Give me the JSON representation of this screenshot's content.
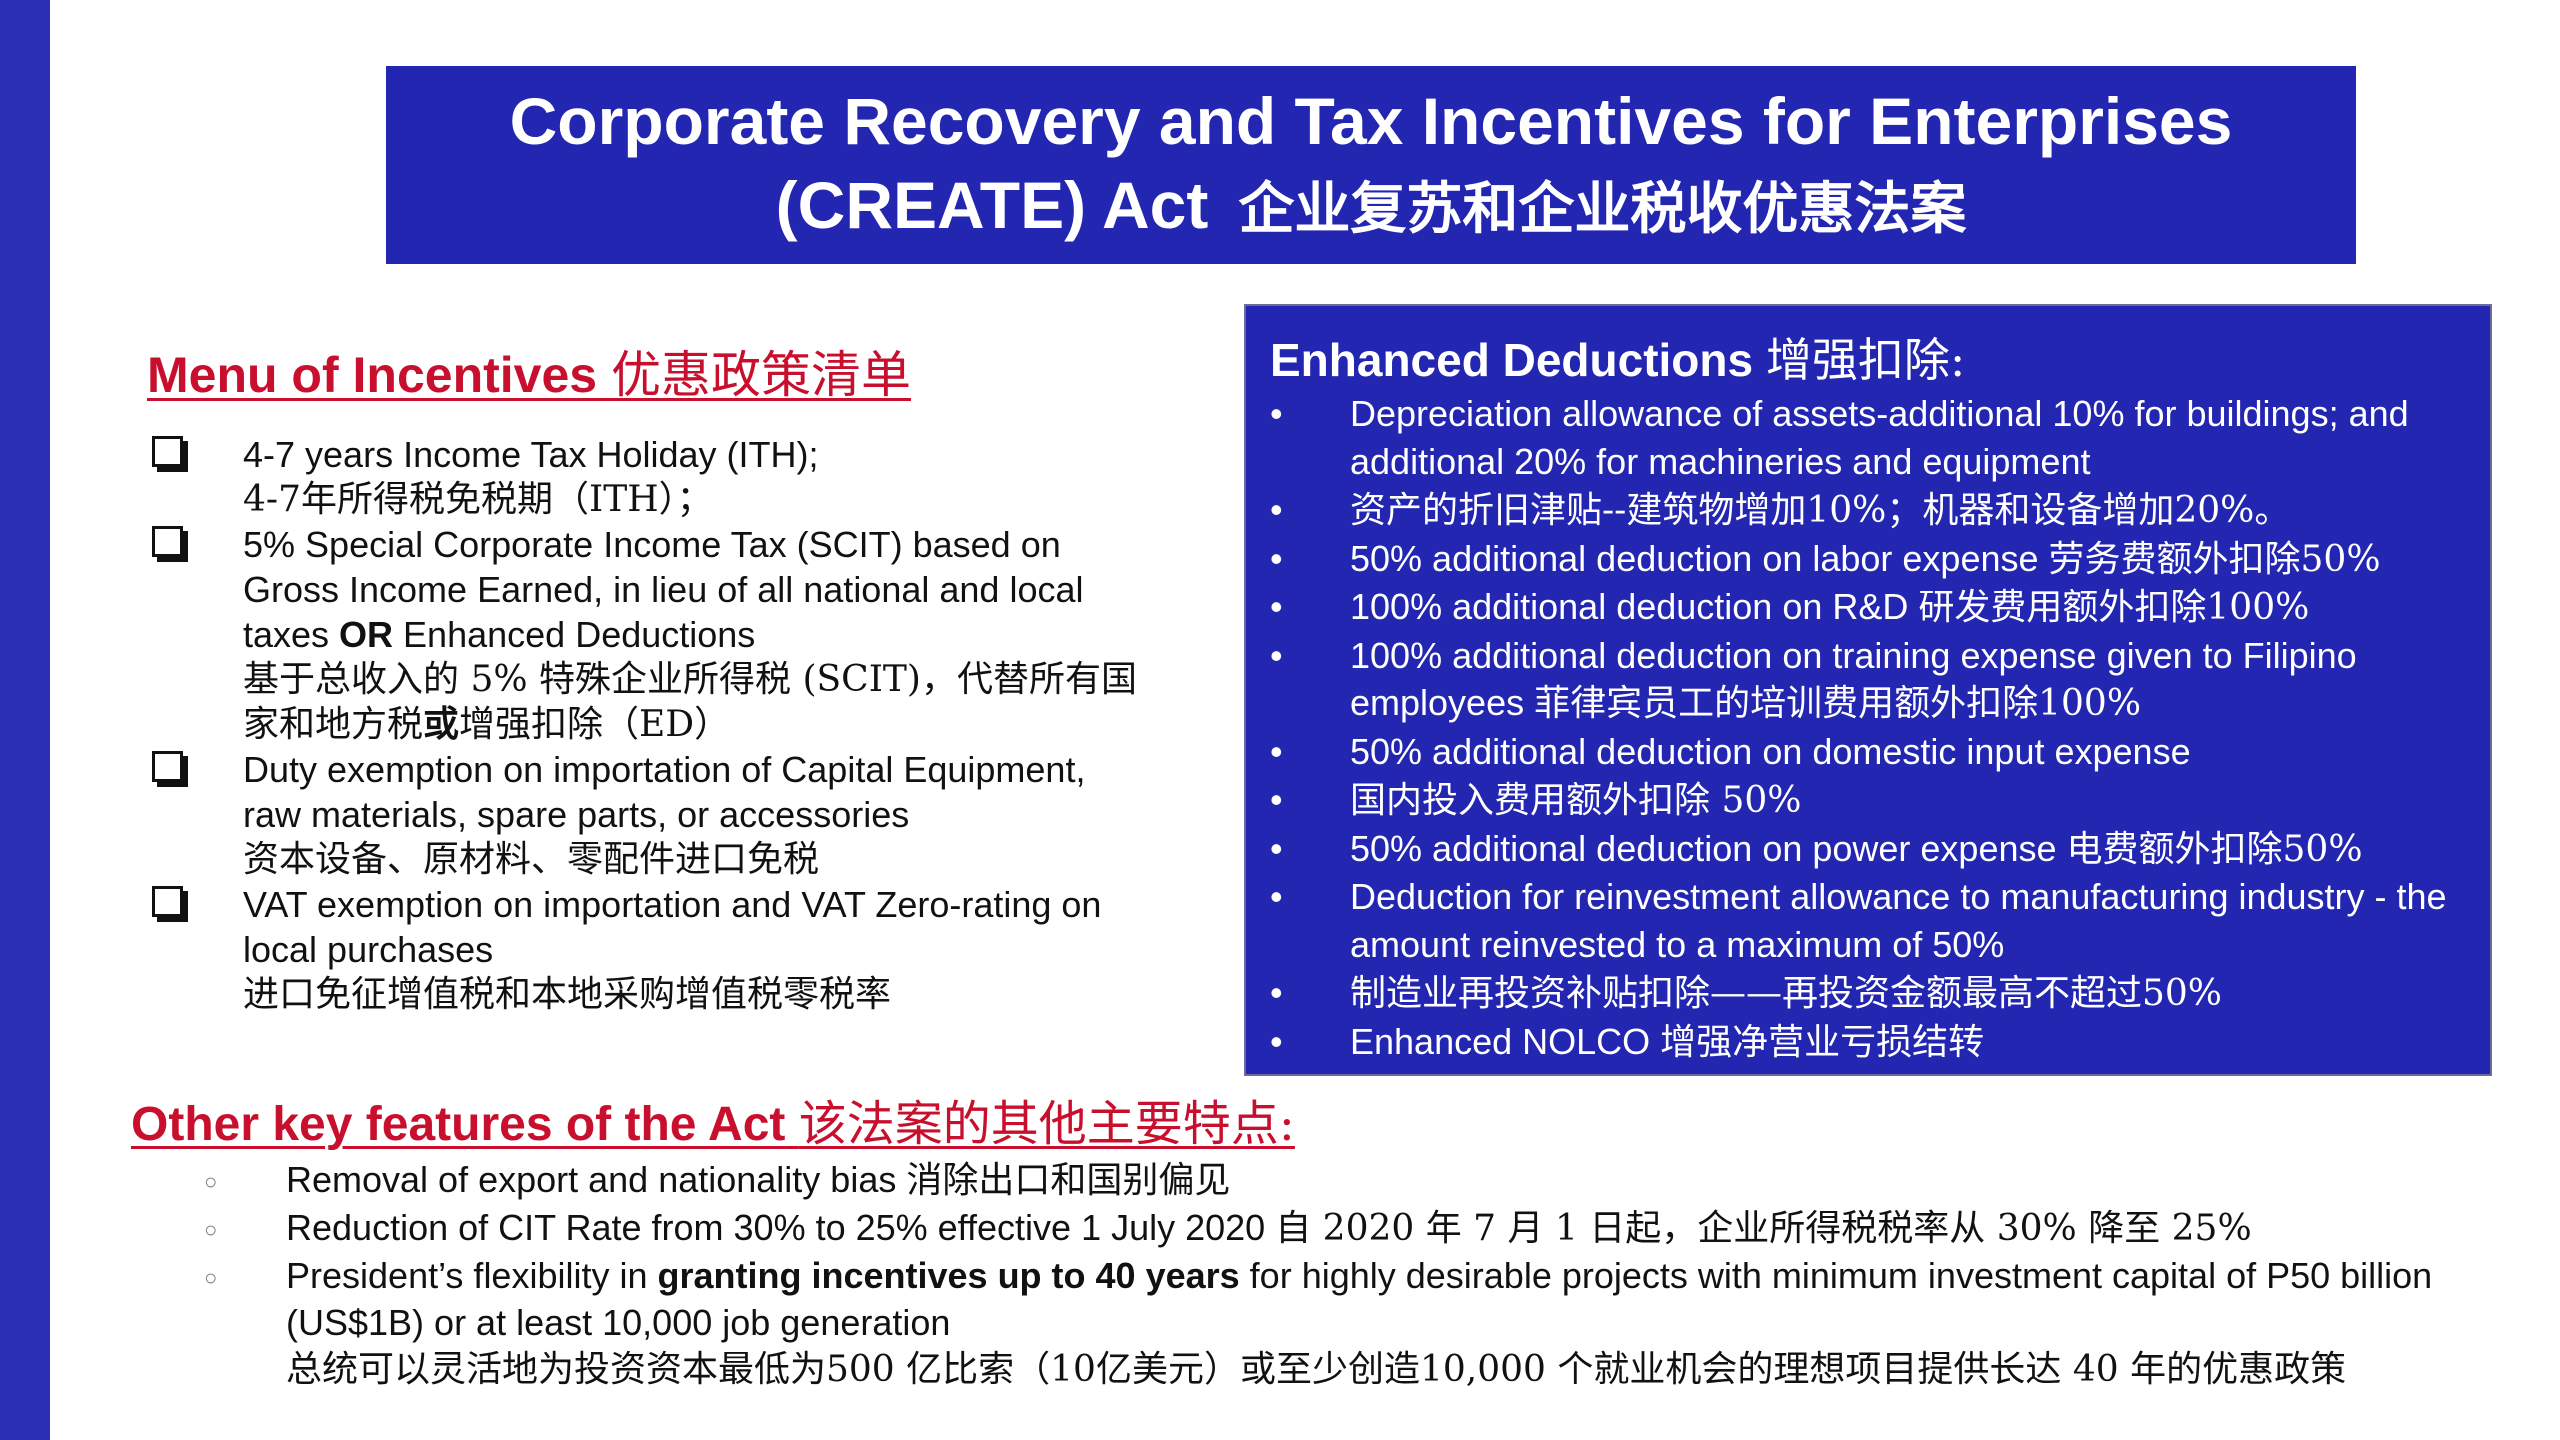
{
  "title": {
    "line1": "Corporate Recovery and Tax Incentives for Enterprises",
    "line2_en": "(CREATE) Act",
    "line2_zh": "企业复苏和企业税收优惠法案"
  },
  "menu": {
    "heading_en": "Menu of Incentives",
    "heading_zh": "优惠政策清单",
    "items": {
      "ith": {
        "en": "4-7 years Income Tax Holiday (ITH);",
        "zh": "4-7年所得税免税期（ITH）；"
      },
      "scit": {
        "en_before": "5% Special Corporate Income Tax (SCIT) based on Gross Income Earned, in lieu of all national and local taxes ",
        "en_bold": "OR",
        "en_after": " Enhanced Deductions",
        "zh_before": "基于总收入的 5% 特殊企业所得税 (SCIT)，代替所有国家和地方税",
        "zh_bold": "或",
        "zh_after": "增强扣除（ED）"
      },
      "duty": {
        "en": "Duty exemption on importation of Capital Equipment, raw materials, spare parts, or accessories",
        "zh": "资本设备、原材料、零配件进口免税"
      },
      "vat": {
        "en": "VAT exemption on importation and VAT Zero-rating on local purchases",
        "zh": "进口免征增值税和本地采购增值税零税率"
      }
    }
  },
  "deductions": {
    "heading_en": "Enhanced Deductions",
    "heading_zh": "增强扣除:",
    "bullet": "•",
    "items": [
      {
        "en": "Depreciation allowance of assets-additional 10% for buildings; and additional 20% for machineries and equipment",
        "zh": ""
      },
      {
        "en": "",
        "zh": "资产的折旧津贴--建筑物增加10%；机器和设备增加20%。"
      },
      {
        "en": "50% additional deduction on labor expense ",
        "zh": "劳务费额外扣除50%"
      },
      {
        "en": "100% additional deduction on R&D ",
        "zh": "研发费用额外扣除100%"
      },
      {
        "en": "100% additional deduction on training expense given to Filipino employees ",
        "zh": "菲律宾员工的培训费用额外扣除100%"
      },
      {
        "en": "50% additional deduction on domestic input expense",
        "zh": ""
      },
      {
        "en": "",
        "zh": "国内投入费用额外扣除 50%"
      },
      {
        "en": "50% additional deduction on power expense ",
        "zh": "电费额外扣除50%"
      },
      {
        "en": "Deduction for reinvestment allowance to manufacturing industry - the amount reinvested to a maximum of 50%",
        "zh": ""
      },
      {
        "en": "",
        "zh": "制造业再投资补贴扣除——再投资金额最高不超过50%"
      },
      {
        "en": "Enhanced NOLCO ",
        "zh": "增强净营业亏损结转"
      }
    ]
  },
  "features": {
    "heading_en": "Other key features of the Act",
    "heading_zh": "该法案的其他主要特点:",
    "bullet": "○",
    "items": {
      "export": {
        "en": "Removal of export and nationality bias ",
        "zh": "消除出口和国别偏见"
      },
      "cit": {
        "en": "Reduction of CIT Rate from 30% to 25% effective 1 July 2020 ",
        "zh": "自 2020 年 7 月 1 日起，企业所得税税率从 30% 降至 25%"
      },
      "president": {
        "en_before": "President’s flexibility in ",
        "en_bold": "granting incentives up to 40 years",
        "en_after": " for highly desirable projects with minimum investment capital of P50 billion (US$1B) or at least 10,000 job generation",
        "zh": "总统可以灵活地为投资资本最低为500 亿比索（10亿美元）或至少创造10,000 个就业机会的理想项目提供长达 40 年的优惠政策"
      }
    }
  },
  "colors": {
    "accent_blue": "#2326b0",
    "heading_red": "#c8102e"
  },
  "icons": {
    "checkbox": "checkbox-icon",
    "bullet": "bullet-icon",
    "circle_bullet": "circle-bullet-icon"
  }
}
